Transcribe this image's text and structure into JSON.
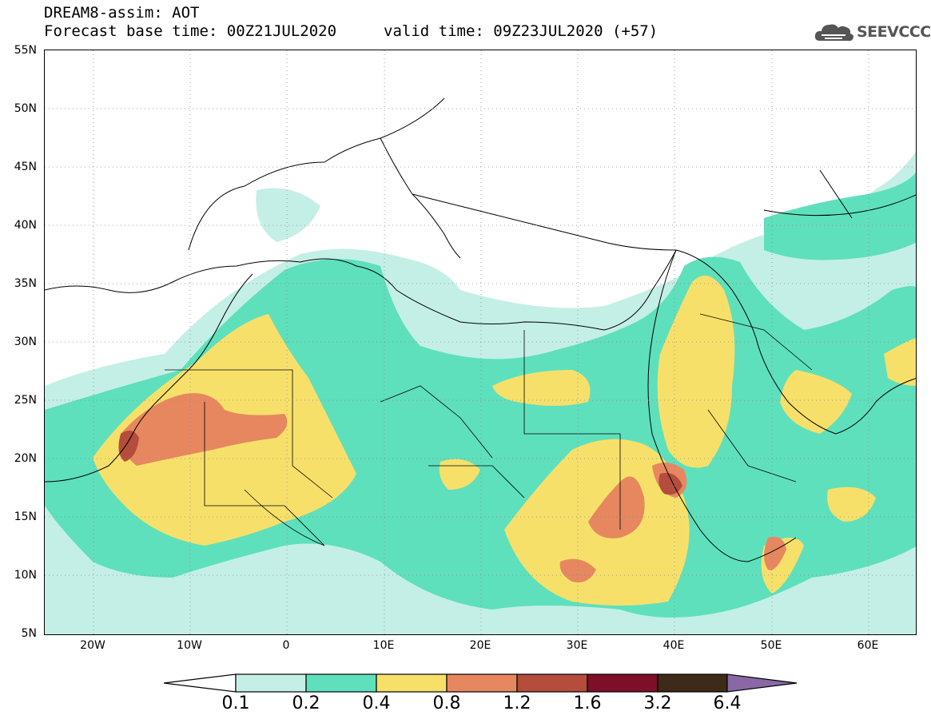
{
  "header": {
    "model_line": "DREAM8-assim: AOT",
    "base_time_line": "Forecast base time: 00Z21JUL2020",
    "valid_time_line": "valid time: 09Z23JUL2020 (+57)"
  },
  "logo": {
    "text": "SEEVCCC",
    "icon": "cloud-icon"
  },
  "map": {
    "lat_labels": [
      "55N",
      "50N",
      "45N",
      "40N",
      "35N",
      "30N",
      "25N",
      "20N",
      "15N",
      "10N",
      "5N"
    ],
    "lon_labels": [
      "20W",
      "10W",
      "0",
      "10E",
      "20E",
      "30E",
      "40E",
      "50E",
      "60E"
    ],
    "lat_range": [
      5,
      55
    ],
    "lon_range": [
      -25,
      65
    ],
    "gridlines": "dotted"
  },
  "legend": {
    "labels": [
      "0.1",
      "0.2",
      "0.4",
      "0.8",
      "1.2",
      "1.6",
      "3.2",
      "6.4"
    ],
    "colors": [
      "#ffffff",
      "#c4efe6",
      "#5ee0bc",
      "#f7e06a",
      "#e7875f",
      "#b44d3c",
      "#7d0f29",
      "#3d2a18",
      "#8a68a6"
    ]
  }
}
